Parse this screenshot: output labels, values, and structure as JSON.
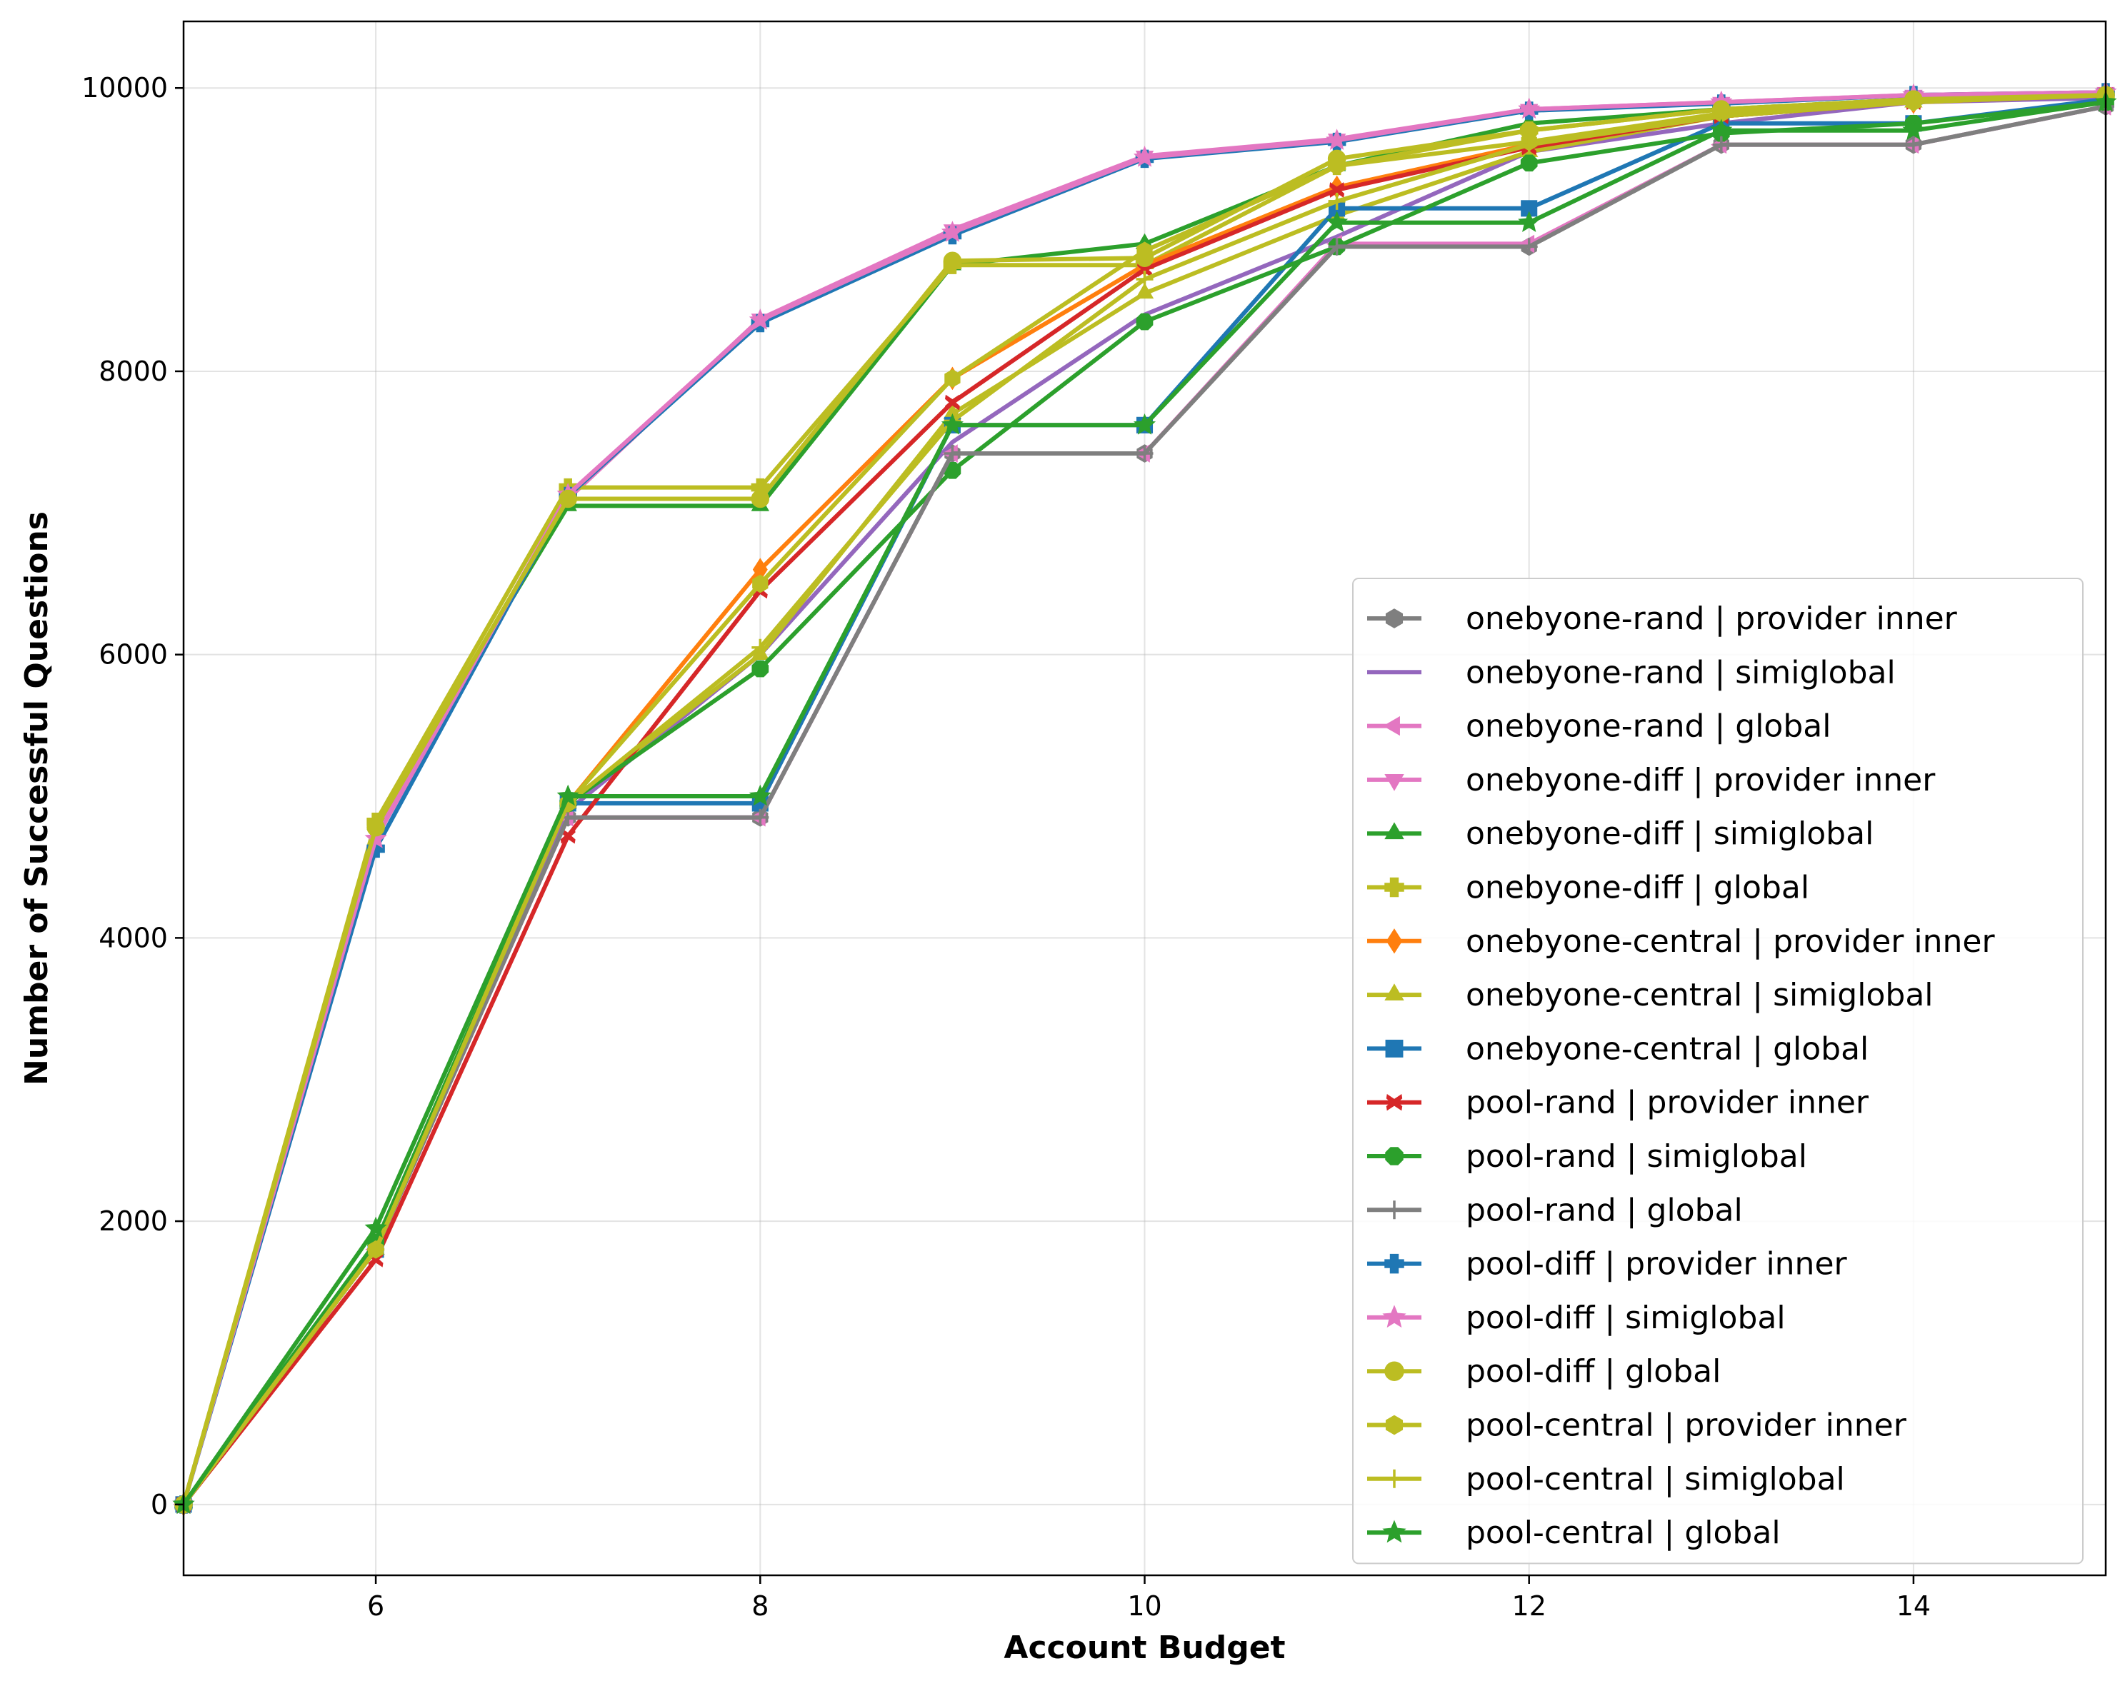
{
  "chart_data": {
    "type": "line",
    "title": "",
    "xlabel": "Account Budget",
    "ylabel": "Number of Successful Questions",
    "xlim": [
      5,
      15
    ],
    "ylim": [
      -500,
      10470
    ],
    "xticks": [
      6,
      8,
      10,
      12,
      14
    ],
    "yticks": [
      0,
      2000,
      4000,
      6000,
      8000,
      10000
    ],
    "grid": true,
    "legend_position": "lower-right",
    "x": [
      5,
      6,
      7,
      8,
      9,
      10,
      11,
      12,
      13,
      14,
      15
    ],
    "series": [
      {
        "name": "onebyone-rand | provider inner",
        "color": "#7f7f7f",
        "marker": "hexagon",
        "values": [
          0,
          1800,
          4850,
          4850,
          7420,
          7420,
          8880,
          8880,
          9600,
          9600,
          9870
        ]
      },
      {
        "name": "onebyone-rand | simiglobal",
        "color": "#9467bd",
        "marker": "none",
        "values": [
          0,
          1800,
          4900,
          6000,
          7500,
          8400,
          8950,
          9550,
          9750,
          9900,
          9930
        ]
      },
      {
        "name": "onebyone-rand | global",
        "color": "#e377c2",
        "marker": "triangle-left",
        "values": [
          0,
          1800,
          4850,
          4850,
          7420,
          7420,
          8900,
          8900,
          9600,
          9600,
          9870
        ]
      },
      {
        "name": "onebyone-diff | provider inner",
        "color": "#e377c2",
        "marker": "triangle-down",
        "values": [
          0,
          4750,
          7100,
          8370,
          9000,
          9520,
          9640,
          9850,
          9900,
          9950,
          9970
        ]
      },
      {
        "name": "onebyone-diff | simiglobal",
        "color": "#2ca02c",
        "marker": "triangle-up",
        "values": [
          0,
          4800,
          7050,
          7050,
          8750,
          8900,
          9450,
          9750,
          9850,
          9920,
          9950
        ]
      },
      {
        "name": "onebyone-diff | global",
        "color": "#bcbd22",
        "marker": "plus-filled",
        "values": [
          0,
          4820,
          7180,
          7180,
          8750,
          8750,
          9450,
          9700,
          9850,
          9920,
          9950
        ]
      },
      {
        "name": "onebyone-central | provider inner",
        "color": "#ff7f0e",
        "marker": "diamond",
        "values": [
          0,
          1800,
          4950,
          6600,
          7950,
          8750,
          9300,
          9600,
          9800,
          9900,
          9950
        ]
      },
      {
        "name": "onebyone-central | simiglobal",
        "color": "#bcbd22",
        "marker": "triangle-up",
        "values": [
          0,
          1800,
          4950,
          6000,
          7700,
          8550,
          9100,
          9550,
          9800,
          9900,
          9950
        ]
      },
      {
        "name": "onebyone-central | global",
        "color": "#1f77b4",
        "marker": "square",
        "values": [
          0,
          1800,
          4950,
          4950,
          7620,
          7620,
          9150,
          9150,
          9750,
          9750,
          9920
        ]
      },
      {
        "name": "pool-rand | provider inner",
        "color": "#d62728",
        "marker": "x-filled",
        "values": [
          0,
          1730,
          4720,
          6450,
          7780,
          8720,
          9280,
          9580,
          9800,
          9900,
          9950
        ]
      },
      {
        "name": "pool-rand | simiglobal",
        "color": "#2ca02c",
        "marker": "octagon",
        "values": [
          0,
          1850,
          4950,
          5900,
          7300,
          8350,
          8880,
          9470,
          9680,
          9750,
          9900
        ]
      },
      {
        "name": "pool-rand | global",
        "color": "#7f7f7f",
        "marker": "plus",
        "values": [
          0,
          1800,
          4850,
          4850,
          7420,
          7420,
          8880,
          8880,
          9600,
          9600,
          9870
        ]
      },
      {
        "name": "pool-diff | provider inner",
        "color": "#1f77b4",
        "marker": "plus-filled",
        "values": [
          0,
          4630,
          7120,
          8340,
          8960,
          9500,
          9620,
          9840,
          9890,
          9950,
          9970
        ]
      },
      {
        "name": "pool-diff | simiglobal",
        "color": "#e377c2",
        "marker": "star",
        "values": [
          0,
          4700,
          7130,
          8360,
          8980,
          9510,
          9630,
          9850,
          9900,
          9950,
          9970
        ]
      },
      {
        "name": "pool-diff | global",
        "color": "#bcbd22",
        "marker": "circle",
        "values": [
          0,
          4780,
          7100,
          7100,
          8780,
          8800,
          9500,
          9700,
          9850,
          9920,
          9950
        ]
      },
      {
        "name": "pool-central | provider inner",
        "color": "#bcbd22",
        "marker": "hexagon",
        "values": [
          0,
          1800,
          4950,
          6500,
          7950,
          8850,
          9450,
          9620,
          9820,
          9900,
          9950
        ]
      },
      {
        "name": "pool-central | simiglobal",
        "color": "#bcbd22",
        "marker": "plus",
        "values": [
          0,
          1800,
          4950,
          6050,
          7650,
          8650,
          9200,
          9600,
          9800,
          9900,
          9950
        ]
      },
      {
        "name": "pool-central | global",
        "color": "#2ca02c",
        "marker": "star",
        "values": [
          0,
          1950,
          5000,
          5000,
          7620,
          7620,
          9050,
          9050,
          9700,
          9700,
          9900
        ]
      }
    ]
  }
}
